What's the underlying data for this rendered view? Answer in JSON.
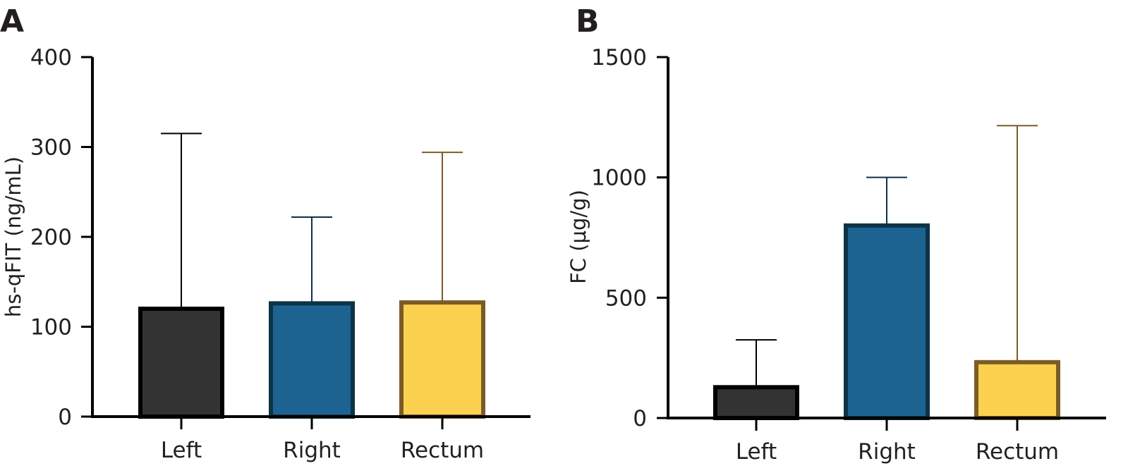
{
  "chart_data": [
    {
      "type": "bar",
      "panel_label": "A",
      "title": "",
      "xlabel": "",
      "ylabel": "hs-qFIT (ng/mL)",
      "categories": [
        "Left",
        "Right",
        "Rectum"
      ],
      "values": [
        120,
        126,
        127
      ],
      "error_upper": [
        315,
        222,
        294
      ],
      "ylim": [
        0,
        400
      ],
      "yticks": [
        0,
        100,
        200,
        300,
        400
      ],
      "ytick_labels": [
        "0",
        "100",
        "200",
        "300",
        "400"
      ],
      "fill_colors": [
        "#333333",
        "#1c6391",
        "#fbd14f"
      ],
      "edge_colors": [
        "#000000",
        "#0d3347",
        "#7a5c27"
      ],
      "grid": false,
      "legend": "none"
    },
    {
      "type": "bar",
      "panel_label": "B",
      "title": "",
      "xlabel": "",
      "ylabel": "FC (μg/g)",
      "categories": [
        "Left",
        "Right",
        "Rectum"
      ],
      "values": [
        128,
        800,
        232
      ],
      "error_upper": [
        325,
        1000,
        1215
      ],
      "ylim": [
        0,
        1500
      ],
      "yticks": [
        0,
        500,
        1000,
        1500
      ],
      "ytick_labels": [
        "0",
        "500",
        "1000",
        "1500"
      ],
      "fill_colors": [
        "#333333",
        "#1c6391",
        "#fbd14f"
      ],
      "edge_colors": [
        "#000000",
        "#0d3347",
        "#7a5c27"
      ],
      "grid": false,
      "legend": "none"
    }
  ]
}
